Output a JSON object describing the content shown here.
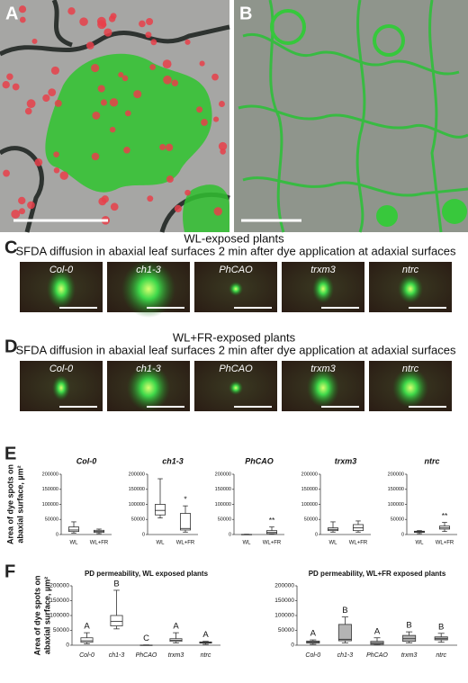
{
  "panel_labels": [
    "A",
    "B",
    "C",
    "D",
    "E",
    "F"
  ],
  "micrograph_rows": [
    {
      "title": "WL-exposed plants",
      "subtitle": "SFDA diffusion in abaxial leaf surfaces 2 min after dye application at adaxial surfaces",
      "labels": [
        "Col-0",
        "ch1-3",
        "PhCAO",
        "trxm3",
        "ntrc"
      ]
    },
    {
      "title": "WL+FR-exposed plants",
      "subtitle": "SFDA diffusion in abaxial leaf surfaces 2 min after dye application at adaxial surfaces",
      "labels": [
        "Col-0",
        "ch1-3",
        "PhCAO",
        "trxm3",
        "ntrc"
      ]
    }
  ],
  "chart_data": [
    {
      "type": "box",
      "title": "Col-0",
      "y_label": [
        "Area of dye spots on",
        "abaxial surface, µm²"
      ],
      "categories": [
        "WL",
        "WL+FR"
      ],
      "values": [
        [
          5000,
          10000,
          15000,
          25000,
          42000
        ],
        [
          3000,
          7000,
          10000,
          14000,
          18000
        ]
      ],
      "annotations": [
        null,
        null
      ],
      "color": "#ffffff",
      "ylim": [
        0,
        200000
      ],
      "yticks": [
        0,
        50000,
        100000,
        150000,
        200000
      ]
    },
    {
      "type": "box",
      "title": "ch1-3",
      "categories": [
        "WL",
        "WL+FR"
      ],
      "values": [
        [
          55000,
          65000,
          80000,
          100000,
          185000
        ],
        [
          8000,
          15000,
          20000,
          70000,
          95000
        ]
      ],
      "annotations": [
        null,
        "*"
      ],
      "color": "#ffffff",
      "ylim": [
        0,
        200000
      ],
      "yticks": [
        0,
        50000,
        100000,
        150000,
        200000
      ]
    },
    {
      "type": "box",
      "title": "PhCAO",
      "categories": [
        "WL",
        "WL+FR"
      ],
      "values": [
        [
          0,
          0,
          0,
          500,
          1000
        ],
        [
          1000,
          3000,
          7000,
          13000,
          25000
        ]
      ],
      "annotations": [
        null,
        "**"
      ],
      "color": "#ffffff",
      "ylim": [
        0,
        200000
      ],
      "yticks": [
        0,
        50000,
        100000,
        150000,
        200000
      ]
    },
    {
      "type": "box",
      "title": "trxm3",
      "categories": [
        "WL",
        "WL+FR"
      ],
      "values": [
        [
          8000,
          13000,
          17000,
          22000,
          42000
        ],
        [
          8000,
          13000,
          22000,
          33000,
          45000
        ]
      ],
      "annotations": [
        null,
        null
      ],
      "color": "#ffffff",
      "ylim": [
        0,
        200000
      ],
      "yticks": [
        0,
        50000,
        100000,
        150000,
        200000
      ]
    },
    {
      "type": "box",
      "title": "ntrc",
      "categories": [
        "WL",
        "WL+FR"
      ],
      "values": [
        [
          3000,
          7000,
          9000,
          11000,
          13000
        ],
        [
          10000,
          18000,
          22000,
          28000,
          40000
        ]
      ],
      "annotations": [
        null,
        "**"
      ],
      "color": "#ffffff",
      "ylim": [
        0,
        200000
      ],
      "yticks": [
        0,
        50000,
        100000,
        150000,
        200000
      ]
    },
    {
      "type": "box",
      "title": "PD permeability, WL exposed plants",
      "y_label": [
        "Area of dye spots on",
        "abaxial surface, µm²"
      ],
      "categories": [
        "Col-0",
        "ch1-3",
        "PhCAO",
        "trxm3",
        "ntrc"
      ],
      "values": [
        [
          5000,
          10000,
          15000,
          25000,
          42000
        ],
        [
          55000,
          65000,
          80000,
          100000,
          185000
        ],
        [
          0,
          0,
          0,
          500,
          1000
        ],
        [
          8000,
          13000,
          17000,
          22000,
          42000
        ],
        [
          3000,
          7000,
          9000,
          11000,
          13000
        ]
      ],
      "annotations": [
        "A",
        "B",
        "C",
        "A",
        "A"
      ],
      "color": "#ffffff",
      "ylim": [
        0,
        200000
      ],
      "yticks": [
        0,
        50000,
        100000,
        150000,
        200000
      ]
    },
    {
      "type": "box",
      "title": "PD permeability, WL+FR exposed plants",
      "categories": [
        "Col-0",
        "ch1-3",
        "PhCAO",
        "trxm3",
        "ntrc"
      ],
      "values": [
        [
          3000,
          7000,
          10000,
          14000,
          18000
        ],
        [
          8000,
          15000,
          20000,
          70000,
          95000
        ],
        [
          1000,
          3000,
          7000,
          13000,
          25000
        ],
        [
          8000,
          13000,
          22000,
          33000,
          45000
        ],
        [
          10000,
          18000,
          22000,
          28000,
          40000
        ]
      ],
      "annotations": [
        "A",
        "B",
        "A",
        "B",
        "B"
      ],
      "color": "#b4b4b4",
      "ylim": [
        0,
        200000
      ],
      "yticks": [
        0,
        50000,
        100000,
        150000,
        200000
      ]
    }
  ]
}
